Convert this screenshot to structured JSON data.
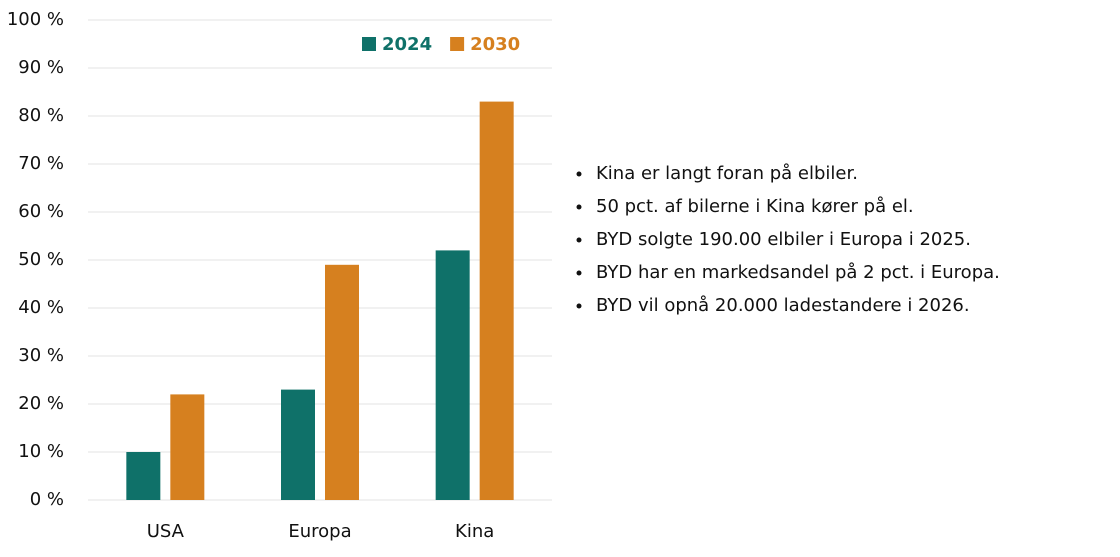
{
  "chart_data": {
    "type": "bar",
    "categories": [
      "USA",
      "Europa",
      "Kina"
    ],
    "series": [
      {
        "name": "2024",
        "color": "#0f7169",
        "values": [
          10,
          23,
          52
        ]
      },
      {
        "name": "2030",
        "color": "#d6801f",
        "values": [
          22,
          49,
          83
        ]
      }
    ],
    "ylim": [
      0,
      100
    ],
    "yticks": [
      {
        "value": 0,
        "label": "0 %"
      },
      {
        "value": 10,
        "label": "10 %"
      },
      {
        "value": 20,
        "label": "20 %"
      },
      {
        "value": 30,
        "label": "30 %"
      },
      {
        "value": 40,
        "label": "40 %"
      },
      {
        "value": 50,
        "label": "50 %"
      },
      {
        "value": 60,
        "label": "60 %"
      },
      {
        "value": 70,
        "label": "70 %"
      },
      {
        "value": 80,
        "label": "80 %"
      },
      {
        "value": 90,
        "label": "90 %"
      },
      {
        "value": 100,
        "label": "100 %"
      }
    ],
    "grid": true,
    "legend": "top-right"
  },
  "notes": [
    "Kina er langt foran på elbiler.",
    "50 pct. af bilerne i Kina kører på el.",
    "BYD solgte 190.00 elbiler i Europa i 2025.",
    "BYD har en markedsandel på 2 pct. i Europa.",
    "BYD vil opnå 20.000 ladestandere i 2026."
  ]
}
